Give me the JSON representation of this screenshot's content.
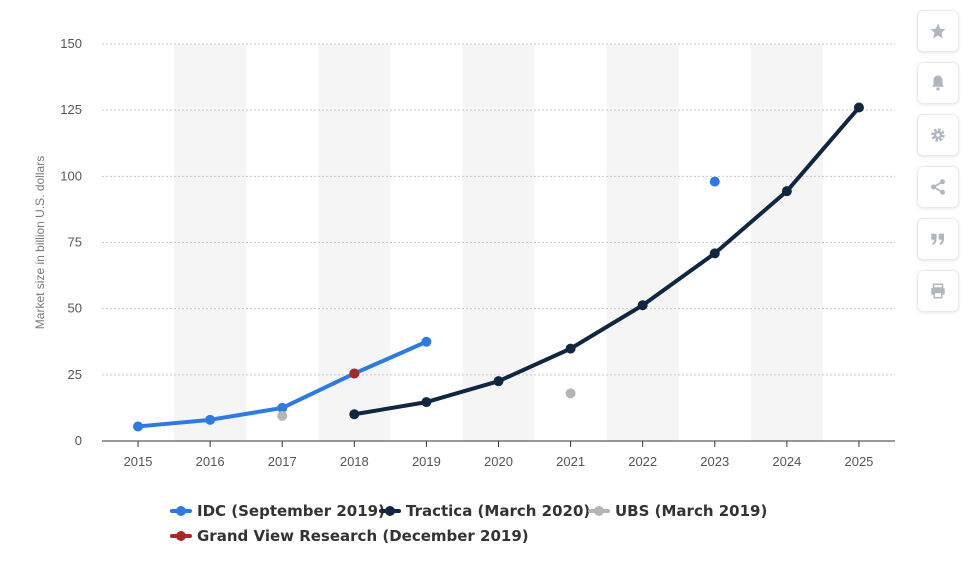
{
  "chart_data": {
    "type": "line",
    "title": "",
    "ylabel": "Market size in billion U.S. dollars",
    "xlabel": "",
    "categories": [
      "2015",
      "2016",
      "2017",
      "2018",
      "2019",
      "2020",
      "2021",
      "2022",
      "2023",
      "2024",
      "2025"
    ],
    "ylim": [
      0,
      150
    ],
    "yticks": [
      0,
      25,
      50,
      75,
      100,
      125,
      150
    ],
    "grid": true,
    "legend_position": "bottom",
    "series": [
      {
        "name": "IDC (September 2019)",
        "color": "#2d7be0",
        "points": [
          {
            "x": "2015",
            "y": 5.5
          },
          {
            "x": "2016",
            "y": 8
          },
          {
            "x": "2017",
            "y": 12.5
          },
          {
            "x": "2018",
            "y": 25.5
          },
          {
            "x": "2019",
            "y": 37.5
          },
          {
            "x": "2023",
            "y": 98
          }
        ]
      },
      {
        "name": "Tractica (March 2020)",
        "color": "#0f2741",
        "points": [
          {
            "x": "2018",
            "y": 10.1
          },
          {
            "x": "2019",
            "y": 14.7
          },
          {
            "x": "2020",
            "y": 22.6
          },
          {
            "x": "2021",
            "y": 34.9
          },
          {
            "x": "2022",
            "y": 51.3
          },
          {
            "x": "2023",
            "y": 70.9
          },
          {
            "x": "2024",
            "y": 94.4
          },
          {
            "x": "2025",
            "y": 126
          }
        ]
      },
      {
        "name": "UBS (March 2019)",
        "color": "#b5b5b5",
        "points": [
          {
            "x": "2017",
            "y": 9.5
          },
          {
            "x": "2021",
            "y": 18
          }
        ]
      },
      {
        "name": "Grand View Research (December 2019)",
        "color": "#a82828",
        "points": [
          {
            "x": "2018",
            "y": 25.5
          }
        ]
      }
    ]
  },
  "toolbar": [
    {
      "name": "favorite-button",
      "icon": "star-icon"
    },
    {
      "name": "notification-button",
      "icon": "bell-icon"
    },
    {
      "name": "settings-button",
      "icon": "gear-icon"
    },
    {
      "name": "share-button",
      "icon": "share-icon"
    },
    {
      "name": "cite-button",
      "icon": "quote-icon"
    },
    {
      "name": "print-button",
      "icon": "printer-icon"
    }
  ],
  "colors": {
    "band": "#f5f5f5",
    "grid": "#c8c8c8",
    "axis": "#333333",
    "icon": "#b0b6bf"
  }
}
